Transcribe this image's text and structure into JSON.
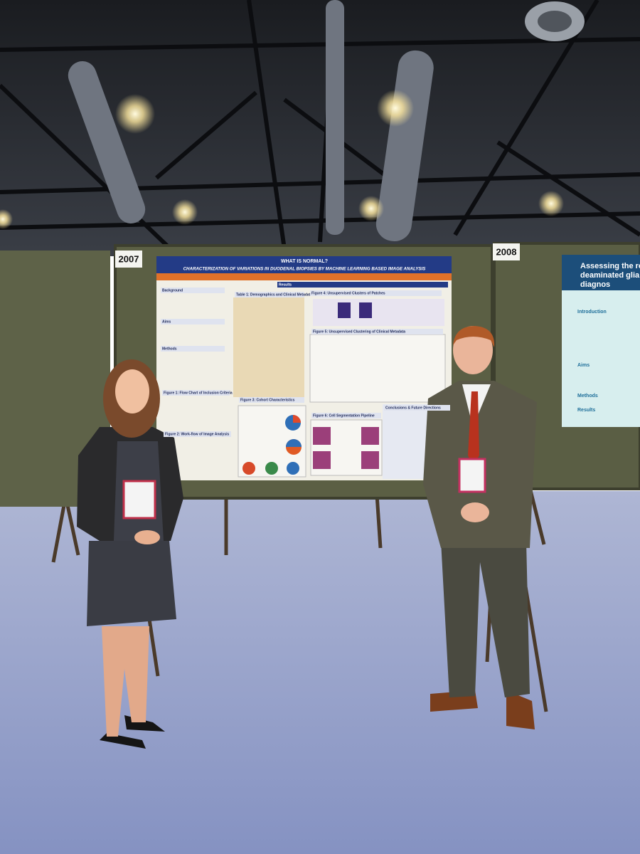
{
  "signs": {
    "left_booth": "2007",
    "right_booth": "2008"
  },
  "poster": {
    "title": "WHAT IS NORMAL?",
    "subtitle": "CHARACTERIZATION OF VARIATIONS IN DUODENAL BIOPSIES BY MACHINE LEARNING BASED IMAGE ANALYSIS",
    "sections": [
      "Background",
      "Aims",
      "Methods",
      "Figure 1: Flow Chart of Inclusion Criteria",
      "Figure 2: Work-flow of Image Analysis",
      "Results",
      "Table 1: Demographics and Clinical Metadata",
      "Figure 3: Cohort Characteristics",
      "Figure 4: Unsupervised Clusters of Patches",
      "Figure 5: Unsupervised Clustering of Clinical Metadata",
      "Figure 6: Cell Segmentation Pipeline",
      "Conclusions & Future Directions"
    ]
  },
  "right_poster": {
    "title_lines": [
      "Assessing the role",
      "deaminated glia",
      "diagnos"
    ],
    "sections": [
      "Introduction",
      "Aims",
      "Methods",
      "Results"
    ]
  }
}
